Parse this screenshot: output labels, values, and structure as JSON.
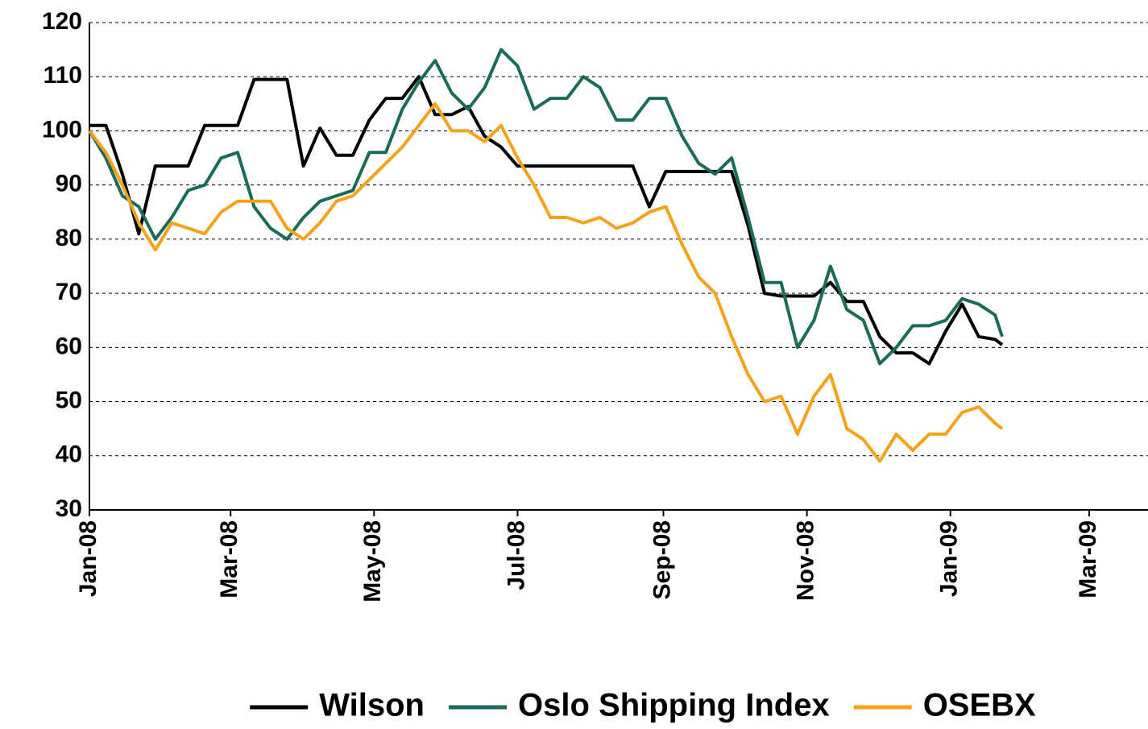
{
  "chart_data": {
    "type": "line",
    "x": [
      "2008-01-01",
      "2008-01-08",
      "2008-01-15",
      "2008-01-22",
      "2008-01-29",
      "2008-02-05",
      "2008-02-12",
      "2008-02-19",
      "2008-02-26",
      "2008-03-04",
      "2008-03-11",
      "2008-03-18",
      "2008-03-25",
      "2008-04-01",
      "2008-04-08",
      "2008-04-15",
      "2008-04-22",
      "2008-04-29",
      "2008-05-06",
      "2008-05-13",
      "2008-05-20",
      "2008-05-27",
      "2008-06-03",
      "2008-06-10",
      "2008-06-17",
      "2008-06-24",
      "2008-07-01",
      "2008-07-08",
      "2008-07-15",
      "2008-07-22",
      "2008-07-29",
      "2008-08-05",
      "2008-08-12",
      "2008-08-19",
      "2008-08-26",
      "2008-09-02",
      "2008-09-09",
      "2008-09-16",
      "2008-09-23",
      "2008-09-30",
      "2008-10-07",
      "2008-10-14",
      "2008-10-21",
      "2008-10-28",
      "2008-11-04",
      "2008-11-11",
      "2008-11-18",
      "2008-11-25",
      "2008-12-02",
      "2008-12-09",
      "2008-12-16",
      "2008-12-23",
      "2008-12-30",
      "2009-01-06",
      "2009-01-13",
      "2009-01-20",
      "2009-01-23"
    ],
    "series": [
      {
        "name": "Wilson",
        "color": "#000000",
        "values": [
          101,
          101,
          92,
          81,
          93.5,
          93.5,
          93.5,
          101,
          101,
          101,
          109.5,
          109.5,
          109.5,
          93.5,
          100.5,
          95.5,
          95.5,
          102,
          106,
          106,
          110,
          103,
          103,
          104.5,
          99,
          97,
          93.5,
          93.5,
          93.5,
          93.5,
          93.5,
          93.5,
          93.5,
          93.5,
          86,
          92.5,
          92.5,
          92.5,
          92.5,
          92.5,
          82.5,
          70,
          69.5,
          69.5,
          69.5,
          72,
          68.5,
          68.5,
          62,
          59,
          59,
          57,
          63,
          68,
          62,
          61.5,
          60.5
        ]
      },
      {
        "name": "Oslo Shipping Index",
        "color": "#1b6b5a",
        "values": [
          100,
          95,
          88,
          86,
          80,
          84,
          89,
          90,
          95,
          96,
          86,
          82,
          80,
          84,
          87,
          88,
          89,
          96,
          96,
          104,
          109,
          113,
          107,
          104,
          108,
          115,
          112,
          104,
          106,
          106,
          110,
          108,
          102,
          102,
          106,
          106,
          99,
          94,
          92,
          95,
          84,
          72,
          72,
          60,
          65,
          75,
          67,
          65,
          57,
          60,
          64,
          64,
          65,
          69,
          68,
          66,
          62
        ]
      },
      {
        "name": "OSEBX",
        "color": "#f7a21b",
        "values": [
          100,
          96,
          90,
          83,
          78,
          83,
          82,
          81,
          85,
          87,
          87,
          87,
          82,
          80,
          83,
          87,
          88,
          91,
          94,
          97,
          101,
          105,
          100,
          100,
          98,
          101,
          95,
          90,
          84,
          84,
          83,
          84,
          82,
          83,
          85,
          86,
          79,
          73,
          70,
          62,
          55,
          50,
          51,
          44,
          51,
          55,
          45,
          43,
          39,
          44,
          41,
          44,
          44,
          48,
          49,
          46,
          45
        ]
      }
    ],
    "xlim": [
      "2008-01-01",
      "2009-03-26"
    ],
    "xticks": [
      {
        "value": "2008-01-01",
        "label": "Jan-08"
      },
      {
        "value": "2008-03-01",
        "label": "Mar-08"
      },
      {
        "value": "2008-05-01",
        "label": "May-08"
      },
      {
        "value": "2008-07-01",
        "label": "Jul-08"
      },
      {
        "value": "2008-09-01",
        "label": "Sep-08"
      },
      {
        "value": "2008-11-01",
        "label": "Nov-08"
      },
      {
        "value": "2009-01-01",
        "label": "Jan-09"
      },
      {
        "value": "2009-03-01",
        "label": "Mar-09"
      }
    ],
    "ylim": [
      30,
      120
    ],
    "yticks": [
      30,
      40,
      50,
      60,
      70,
      80,
      90,
      100,
      110,
      120
    ],
    "grid": true,
    "legend": "bottom"
  }
}
